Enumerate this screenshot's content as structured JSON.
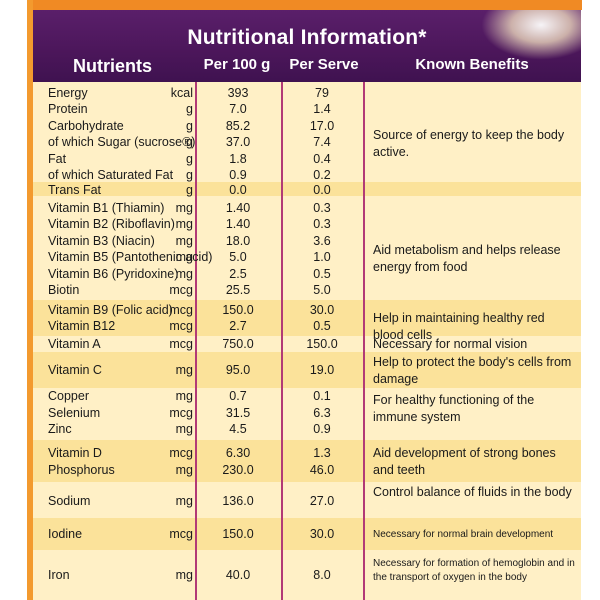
{
  "title": "Nutritional Information*",
  "headers": {
    "nutrients": "Nutrients",
    "per100": "Per 100 g",
    "perServe": "Per Serve",
    "benefits": "Known Benefits"
  },
  "rows": [
    {
      "name": "Energy",
      "unit": "kcal",
      "per100": "393",
      "perServe": "79"
    },
    {
      "name": "Protein",
      "unit": "g",
      "per100": "7.0",
      "perServe": "1.4"
    },
    {
      "name": "Carbohydrate",
      "unit": "g",
      "per100": "85.2",
      "perServe": "17.0"
    },
    {
      "name": "of which Sugar (sucrose®)",
      "unit": "g",
      "per100": "37.0",
      "perServe": "7.4"
    },
    {
      "name": "Fat",
      "unit": "g",
      "per100": "1.8",
      "perServe": "0.4"
    },
    {
      "name": "of which Saturated Fat",
      "unit": "g",
      "per100": "0.9",
      "perServe": "0.2"
    },
    {
      "name": "Trans Fat",
      "unit": "g",
      "per100": "0.0",
      "perServe": "0.0"
    },
    {
      "name": "Vitamin B1 (Thiamin)",
      "unit": "mg",
      "per100": "1.40",
      "perServe": "0.3"
    },
    {
      "name": "Vitamin B2 (Riboflavin)",
      "unit": "mg",
      "per100": "1.40",
      "perServe": "0.3"
    },
    {
      "name": "Vitamin B3 (Niacin)",
      "unit": "mg",
      "per100": "18.0",
      "perServe": "3.6"
    },
    {
      "name": "Vitamin B5 (Pantothenic acid)",
      "unit": "mg",
      "per100": "5.0",
      "perServe": "1.0"
    },
    {
      "name": "Vitamin B6 (Pyridoxine)",
      "unit": "mg",
      "per100": "2.5",
      "perServe": "0.5"
    },
    {
      "name": "Biotin",
      "unit": "mcg",
      "per100": "25.5",
      "perServe": "5.0"
    },
    {
      "name": "Vitamin B9 (Folic acid)",
      "unit": "mcg",
      "per100": "150.0",
      "perServe": "30.0"
    },
    {
      "name": "Vitamin B12",
      "unit": "mcg",
      "per100": "2.7",
      "perServe": "0.5"
    },
    {
      "name": "Vitamin A",
      "unit": "mcg",
      "per100": "750.0",
      "perServe": "150.0"
    },
    {
      "name": "Vitamin C",
      "unit": "mg",
      "per100": "95.0",
      "perServe": "19.0"
    },
    {
      "name": "Copper",
      "unit": "mg",
      "per100": "0.7",
      "perServe": "0.1"
    },
    {
      "name": "Selenium",
      "unit": "mcg",
      "per100": "31.5",
      "perServe": "6.3"
    },
    {
      "name": "Zinc",
      "unit": "mg",
      "per100": "4.5",
      "perServe": "0.9"
    },
    {
      "name": "Vitamin D",
      "unit": "mcg",
      "per100": "6.30",
      "perServe": "1.3"
    },
    {
      "name": "Phosphorus",
      "unit": "mg",
      "per100": "230.0",
      "perServe": "46.0"
    },
    {
      "name": "Sodium",
      "unit": "mg",
      "per100": "136.0",
      "perServe": "27.0"
    },
    {
      "name": "Iodine",
      "unit": "mcg",
      "per100": "150.0",
      "perServe": "30.0"
    },
    {
      "name": "Iron",
      "unit": "mg",
      "per100": "40.0",
      "perServe": "8.0"
    }
  ],
  "benefits": [
    "Source of energy to keep the body active.",
    "Aid metabolism and helps release energy from food",
    "Help in maintaining healthy red blood cells",
    "Necessary for normal vision",
    "Help to protect the body's cells from damage",
    "For healthy functioning of the immune system",
    "Aid development of strong bones and teeth",
    "Control balance of fluids in the body",
    "Necessary for normal brain development",
    "Necessary for formation of hemoglobin and in the transport of oxygen in the body"
  ]
}
